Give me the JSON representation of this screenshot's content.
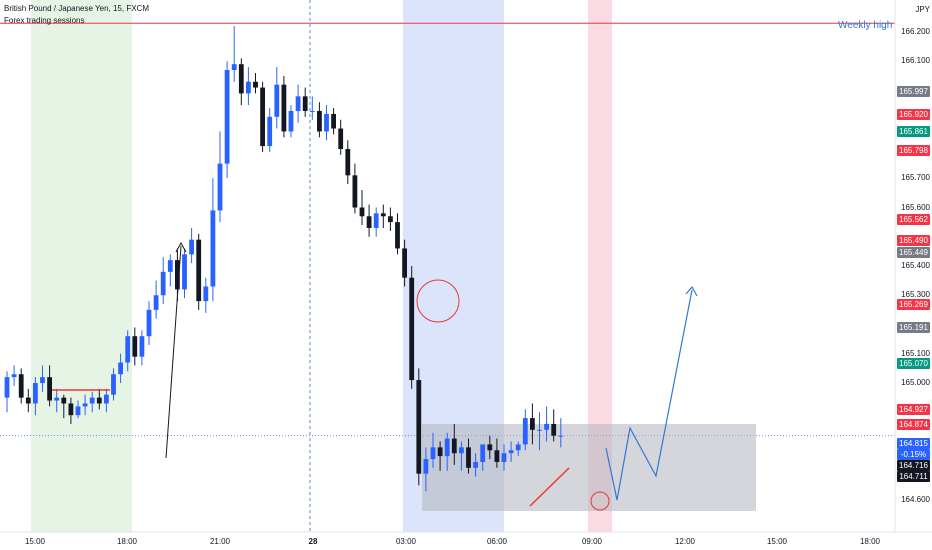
{
  "header": {
    "symbol_line": "British Pound / Japanese Yen, 15, FXCM",
    "indicator_line": "Forex trading sessions"
  },
  "currency": "JPY",
  "annotation": {
    "weekly_high": "Weekly high"
  },
  "price_axis": {
    "ticks": [
      "166.200",
      "166.100",
      "165.700",
      "165.600",
      "165.400",
      "165.300",
      "165.100",
      "165.000",
      "164.600"
    ],
    "tags": [
      {
        "value": "165.997",
        "color": "#787b86"
      },
      {
        "value": "165.920",
        "color": "#f23645"
      },
      {
        "value": "165.861",
        "color": "#089981"
      },
      {
        "value": "165.798",
        "color": "#f23645"
      },
      {
        "value": "165.562",
        "color": "#f23645"
      },
      {
        "value": "165.490",
        "color": "#f23645"
      },
      {
        "value": "165.449",
        "color": "#787b86"
      },
      {
        "value": "165.269",
        "color": "#f23645"
      },
      {
        "value": "165.191",
        "color": "#787b86"
      },
      {
        "value": "165.070",
        "color": "#089981"
      },
      {
        "value": "164.927",
        "color": "#f23645"
      },
      {
        "value": "164.874",
        "color": "#f23645"
      },
      {
        "value": "164.815",
        "color": "#2962ff"
      },
      {
        "value": "-0.15%",
        "color": "#2962ff"
      },
      {
        "value": "164.716",
        "color": "#131722"
      },
      {
        "value": "164.711",
        "color": "#131722"
      }
    ]
  },
  "time_axis": [
    "15:00",
    "18:00",
    "21:00",
    "28",
    "03:00",
    "06:00",
    "09:00",
    "12:00",
    "15:00",
    "18:00"
  ],
  "colors": {
    "up": "#2962ff",
    "down": "#131722",
    "green_session": "#e6f4e6",
    "blue_session": "#dce4fb",
    "pink_session": "#fbdbe2",
    "box": "#b2b5be",
    "weekly_line": "#f23645",
    "projection": "#2e78d6",
    "circle": "#e53935"
  },
  "chart_data": {
    "type": "candlestick",
    "symbol": "British Pound / Japanese Yen",
    "interval": "15",
    "source": "FXCM",
    "currency": "JPY",
    "ylim": [
      164.55,
      166.28
    ],
    "weekly_high": 166.23,
    "x": [
      "14:00",
      "14:15",
      "14:30",
      "14:45",
      "15:00",
      "15:15",
      "15:30",
      "15:45",
      "16:00",
      "16:15",
      "16:30",
      "16:45",
      "17:00",
      "17:15",
      "17:30",
      "17:45",
      "18:00",
      "18:15",
      "18:30",
      "18:45",
      "19:00",
      "19:15",
      "19:30",
      "19:45",
      "20:00",
      "20:15",
      "20:30",
      "20:45",
      "21:00",
      "21:15",
      "21:30",
      "21:45",
      "22:00",
      "22:15",
      "22:30",
      "22:45",
      "23:00",
      "23:15",
      "23:30",
      "23:45",
      "00:00",
      "00:15",
      "00:30",
      "00:45",
      "01:00",
      "01:15",
      "01:30",
      "01:45",
      "02:00",
      "02:15",
      "02:30",
      "02:45",
      "03:00",
      "03:15",
      "03:30",
      "03:45",
      "04:00",
      "04:15",
      "04:30",
      "04:45",
      "05:00",
      "05:15",
      "05:30",
      "05:45",
      "06:00",
      "06:15",
      "06:30",
      "06:45",
      "07:00",
      "07:15",
      "07:30",
      "07:45",
      "08:00",
      "08:15",
      "08:30",
      "08:45",
      "09:00",
      "09:15",
      "09:30"
    ],
    "open": [
      164.95,
      165.02,
      165.03,
      164.95,
      164.93,
      165.0,
      165.02,
      164.94,
      164.95,
      164.93,
      164.89,
      164.92,
      164.93,
      164.95,
      164.93,
      164.96,
      165.03,
      165.07,
      165.16,
      165.09,
      165.16,
      165.25,
      165.3,
      165.38,
      165.42,
      165.32,
      165.44,
      165.49,
      165.28,
      165.33,
      165.59,
      165.75,
      166.07,
      166.09,
      165.99,
      166.03,
      166.01,
      165.81,
      165.91,
      166.02,
      165.86,
      165.93,
      165.98,
      165.93,
      165.93,
      165.86,
      165.92,
      165.87,
      165.8,
      165.71,
      165.6,
      165.57,
      165.53,
      165.58,
      165.57,
      165.55,
      165.46,
      165.36,
      165.01,
      164.69,
      164.74,
      164.78,
      164.75,
      164.81,
      164.76,
      164.78,
      164.71,
      164.73,
      164.79,
      164.77,
      164.73,
      164.76,
      164.77,
      164.79,
      164.88,
      164.84,
      164.84,
      164.86,
      164.82
    ],
    "close": [
      165.02,
      165.03,
      164.95,
      164.93,
      165.0,
      165.02,
      164.94,
      164.95,
      164.93,
      164.89,
      164.92,
      164.93,
      164.95,
      164.93,
      164.96,
      165.03,
      165.07,
      165.16,
      165.09,
      165.16,
      165.25,
      165.3,
      165.38,
      165.42,
      165.32,
      165.44,
      165.49,
      165.28,
      165.33,
      165.59,
      165.75,
      166.07,
      166.09,
      165.99,
      166.03,
      166.01,
      165.81,
      165.91,
      166.02,
      165.86,
      165.93,
      165.98,
      165.93,
      165.93,
      165.86,
      165.92,
      165.87,
      165.8,
      165.71,
      165.6,
      165.57,
      165.53,
      165.58,
      165.57,
      165.55,
      165.46,
      165.36,
      165.01,
      164.69,
      164.74,
      164.78,
      164.75,
      164.81,
      164.76,
      164.78,
      164.71,
      164.73,
      164.79,
      164.77,
      164.73,
      164.76,
      164.77,
      164.79,
      164.88,
      164.84,
      164.84,
      164.86,
      164.82,
      164.82
    ],
    "high": [
      165.04,
      165.06,
      165.05,
      164.98,
      165.02,
      165.06,
      165.06,
      164.98,
      164.96,
      164.95,
      164.94,
      164.96,
      164.97,
      164.98,
      164.98,
      165.05,
      165.1,
      165.18,
      165.19,
      165.18,
      165.28,
      165.35,
      165.43,
      165.44,
      165.46,
      165.46,
      165.53,
      165.51,
      165.36,
      165.7,
      165.86,
      166.1,
      166.22,
      166.11,
      166.08,
      166.06,
      166.03,
      165.94,
      166.08,
      166.05,
      165.95,
      166.02,
      166.01,
      165.98,
      165.96,
      165.95,
      165.94,
      165.9,
      165.83,
      165.75,
      165.66,
      165.61,
      165.6,
      165.61,
      165.6,
      165.58,
      165.49,
      165.4,
      165.05,
      164.78,
      164.83,
      164.8,
      164.83,
      164.86,
      164.8,
      164.81,
      164.76,
      164.79,
      164.82,
      164.81,
      164.79,
      164.8,
      164.8,
      164.91,
      164.93,
      164.9,
      164.92,
      164.91,
      164.88
    ],
    "low": [
      164.9,
      164.99,
      164.93,
      164.9,
      164.89,
      164.97,
      164.92,
      164.9,
      164.88,
      164.86,
      164.88,
      164.89,
      164.9,
      164.91,
      164.9,
      164.94,
      165.0,
      165.04,
      165.06,
      165.06,
      165.13,
      165.22,
      165.27,
      165.33,
      165.28,
      165.29,
      165.41,
      165.25,
      165.24,
      165.28,
      165.55,
      165.7,
      166.03,
      165.95,
      165.95,
      165.99,
      165.79,
      165.79,
      165.87,
      165.84,
      165.84,
      165.89,
      165.91,
      165.9,
      165.84,
      165.83,
      165.85,
      165.78,
      165.68,
      165.58,
      165.54,
      165.5,
      165.5,
      165.53,
      165.52,
      165.44,
      165.33,
      164.98,
      164.65,
      164.63,
      164.71,
      164.7,
      164.7,
      164.72,
      164.7,
      164.69,
      164.68,
      164.7,
      164.74,
      164.71,
      164.7,
      164.73,
      164.75,
      164.77,
      164.79,
      164.77,
      164.8,
      164.8,
      164.78
    ]
  }
}
